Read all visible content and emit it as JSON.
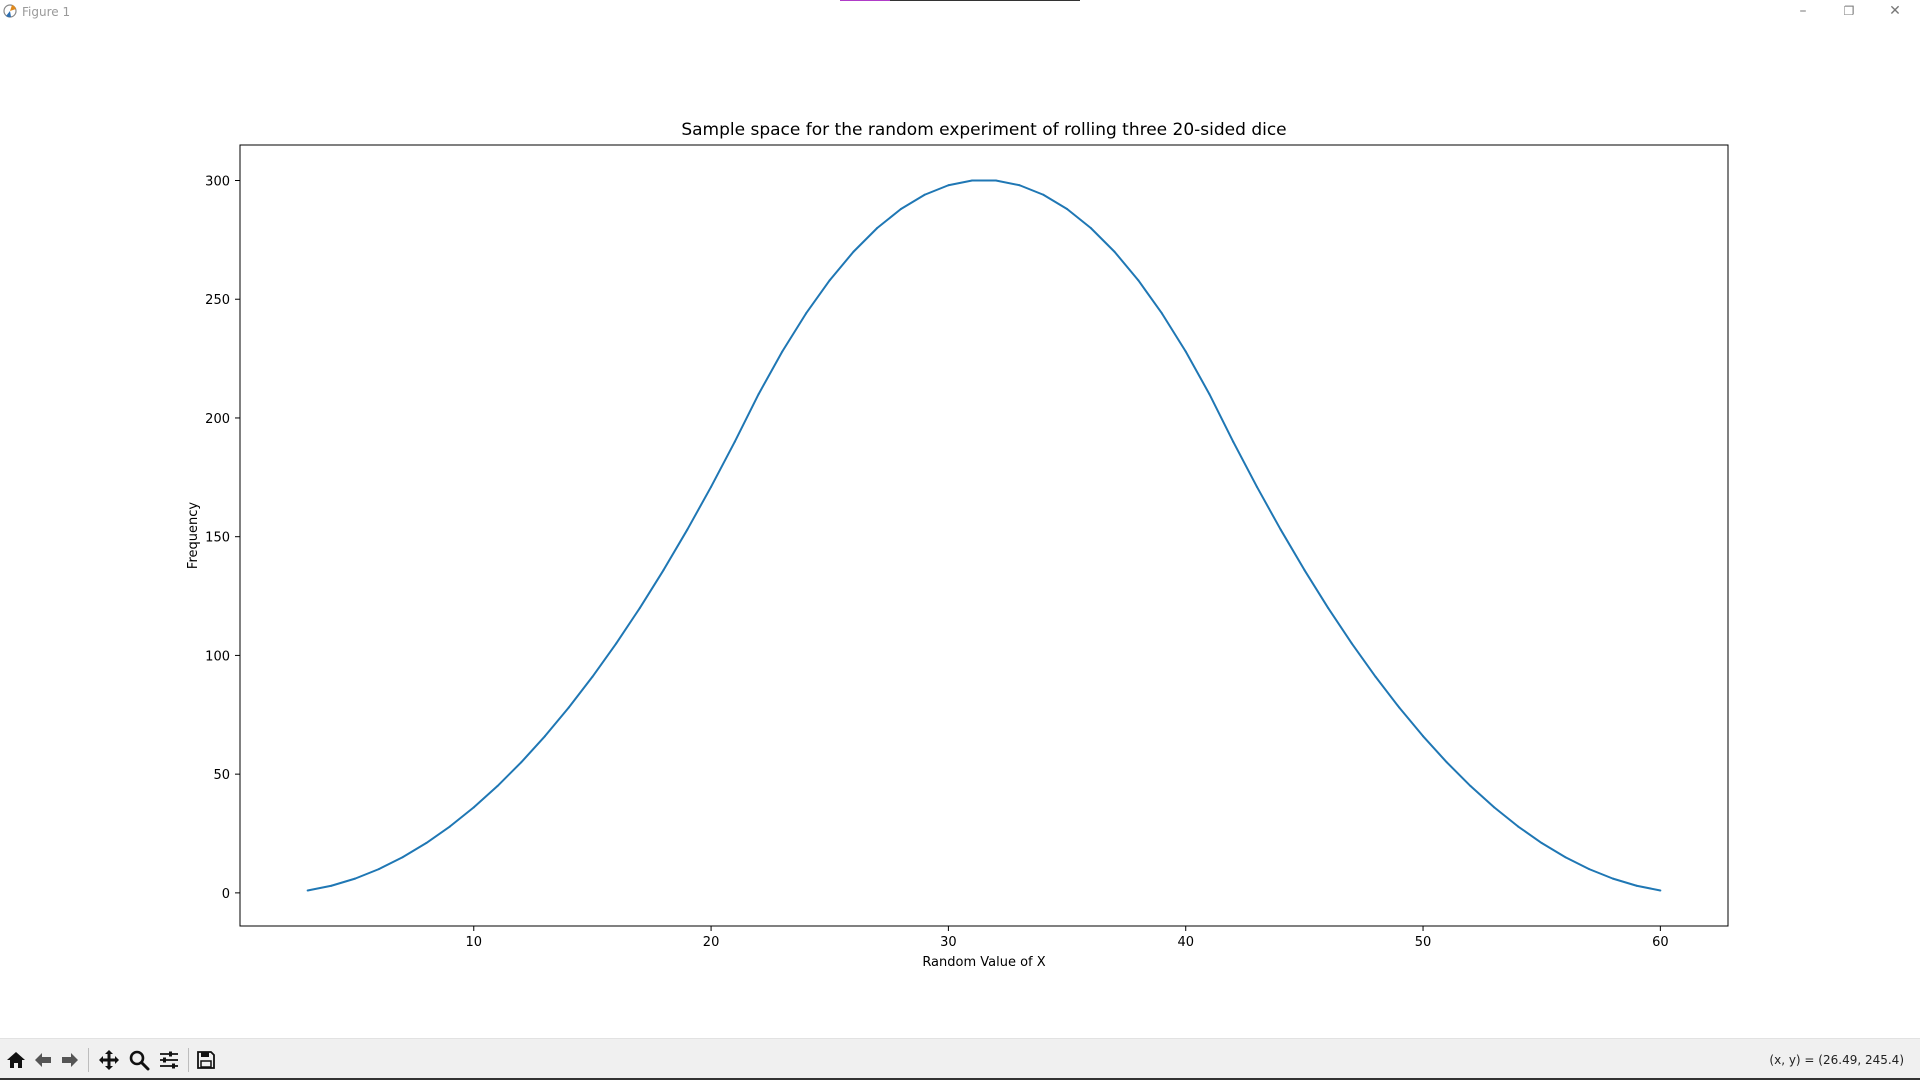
{
  "window": {
    "title": "Figure 1",
    "minimize": "–",
    "restore": "❐",
    "close": "✕"
  },
  "toolbar": {
    "buttons": [
      {
        "name": "home-icon"
      },
      {
        "name": "back-arrow-icon"
      },
      {
        "name": "forward-arrow-icon"
      },
      {
        "name": "pan-icon"
      },
      {
        "name": "zoom-icon"
      },
      {
        "name": "configure-subplots-icon"
      },
      {
        "name": "save-icon"
      }
    ],
    "coordinates": "(x, y) = (26.49, 245.4)"
  },
  "colors": {
    "line": "#1f77b4",
    "toolbar_bg": "#f0f0f0"
  },
  "chart_data": {
    "type": "line",
    "title": "Sample space for the random experiment of rolling three 20-sided dice",
    "xlabel": "Random Value of X",
    "ylabel": "Frequency",
    "xlim": [
      0.15,
      62.85
    ],
    "ylim": [
      -13.95,
      314.95
    ],
    "xticks": [
      10,
      20,
      30,
      40,
      50,
      60
    ],
    "yticks": [
      0,
      50,
      100,
      150,
      200,
      250,
      300
    ],
    "grid": false,
    "series": [
      {
        "x": [
          3,
          4,
          5,
          6,
          7,
          8,
          9,
          10,
          11,
          12,
          13,
          14,
          15,
          16,
          17,
          18,
          19,
          20,
          21,
          22,
          23,
          24,
          25,
          26,
          27,
          28,
          29,
          30,
          31,
          32,
          33,
          34,
          35,
          36,
          37,
          38,
          39,
          40,
          41,
          42,
          43,
          44,
          45,
          46,
          47,
          48,
          49,
          50,
          51,
          52,
          53,
          54,
          55,
          56,
          57,
          58,
          59,
          60
        ],
        "values": [
          1,
          3,
          6,
          10,
          15,
          21,
          28,
          36,
          45,
          55,
          66,
          78,
          91,
          105,
          120,
          136,
          153,
          171,
          190,
          210,
          228,
          244,
          258,
          270,
          280,
          288,
          294,
          298,
          300,
          300,
          298,
          294,
          288,
          280,
          270,
          258,
          244,
          228,
          210,
          190,
          171,
          153,
          136,
          120,
          105,
          91,
          78,
          66,
          55,
          45,
          36,
          28,
          21,
          15,
          10,
          6,
          3,
          1
        ]
      }
    ]
  }
}
